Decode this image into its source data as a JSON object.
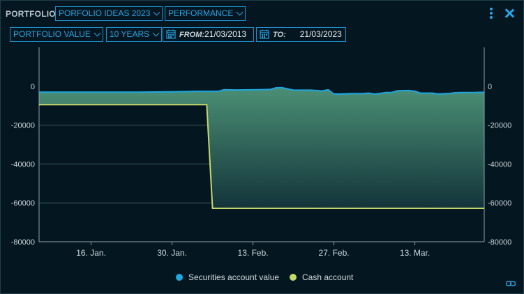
{
  "header": {
    "title": "PORTFOLIO",
    "portfolio_select": "PORFOLIO IDEAS 2023",
    "view_select": "PERFORMANCE",
    "menu_icon": "more-vertical-icon",
    "close_icon": "close-icon"
  },
  "filters": {
    "metric_select": "PORTFOLIO VALUE",
    "range_select": "10 YEARS",
    "from_label": "FROM:",
    "from_value": "21/03/2013",
    "to_label": "TO:",
    "to_value": "21/03/2023"
  },
  "colors": {
    "securities": "#1ea7e0",
    "cash": "#c5d86d",
    "fill_top": "#4b8f75",
    "fill_bottom": "#13343a"
  },
  "chart_data": {
    "type": "line",
    "title": "",
    "xlabel": "",
    "ylabel": "",
    "ylim": [
      -80000,
      20000
    ],
    "y_ticks": [
      "0",
      "-20000",
      "-40000",
      "-60000",
      "-80000"
    ],
    "y_tick_values": [
      0,
      -20000,
      -40000,
      -60000,
      -80000
    ],
    "x_domain": [
      "2023-01-07",
      "2023-03-25"
    ],
    "x_ticks": [
      {
        "date": "2023-01-16",
        "label": "16. Jan."
      },
      {
        "date": "2023-01-30",
        "label": "30. Jan."
      },
      {
        "date": "2023-02-13",
        "label": "13. Feb."
      },
      {
        "date": "2023-02-27",
        "label": "27. Feb."
      },
      {
        "date": "2023-03-13",
        "label": "13. Mar."
      }
    ],
    "grid": true,
    "legend_position": "bottom",
    "series": [
      {
        "name": "Securities account value",
        "color": "#1ea7e0",
        "area": true,
        "points": [
          [
            "2023-01-07",
            -3000
          ],
          [
            "2023-01-10",
            -3000
          ],
          [
            "2023-01-17",
            -3000
          ],
          [
            "2023-01-24",
            -3000
          ],
          [
            "2023-01-31",
            -2800
          ],
          [
            "2023-02-03",
            -2600
          ],
          [
            "2023-02-07",
            -2600
          ],
          [
            "2023-02-08",
            -1800
          ],
          [
            "2023-02-10",
            -1900
          ],
          [
            "2023-02-14",
            -1800
          ],
          [
            "2023-02-16",
            -1600
          ],
          [
            "2023-02-17",
            -800
          ],
          [
            "2023-02-18",
            -700
          ],
          [
            "2023-02-20",
            -2000
          ],
          [
            "2023-02-23",
            -2000
          ],
          [
            "2023-02-25",
            -2400
          ],
          [
            "2023-02-26",
            -1800
          ],
          [
            "2023-02-27",
            -4000
          ],
          [
            "2023-02-28",
            -4000
          ],
          [
            "2023-03-02",
            -3800
          ],
          [
            "2023-03-04",
            -3800
          ],
          [
            "2023-03-05",
            -3500
          ],
          [
            "2023-03-06",
            -4000
          ],
          [
            "2023-03-07",
            -3700
          ],
          [
            "2023-03-08",
            -3200
          ],
          [
            "2023-03-09",
            -3200
          ],
          [
            "2023-03-10",
            -2300
          ],
          [
            "2023-03-12",
            -2200
          ],
          [
            "2023-03-13",
            -2600
          ],
          [
            "2023-03-14",
            -3500
          ],
          [
            "2023-03-16",
            -3500
          ],
          [
            "2023-03-17",
            -4000
          ],
          [
            "2023-03-19",
            -3700
          ],
          [
            "2023-03-20",
            -3300
          ],
          [
            "2023-03-21",
            -3200
          ],
          [
            "2023-03-23",
            -3200
          ],
          [
            "2023-03-25",
            -3100
          ]
        ]
      },
      {
        "name": "Cash account",
        "color": "#c5d86d",
        "area": false,
        "points": [
          [
            "2023-01-07",
            -9500
          ],
          [
            "2023-02-05",
            -9500
          ],
          [
            "2023-02-06",
            -62800
          ],
          [
            "2023-03-25",
            -62800
          ]
        ]
      }
    ]
  },
  "legend": {
    "securities_label": "Securities account value",
    "cash_label": "Cash account"
  },
  "footer": {
    "link_icon": "link-icon"
  }
}
